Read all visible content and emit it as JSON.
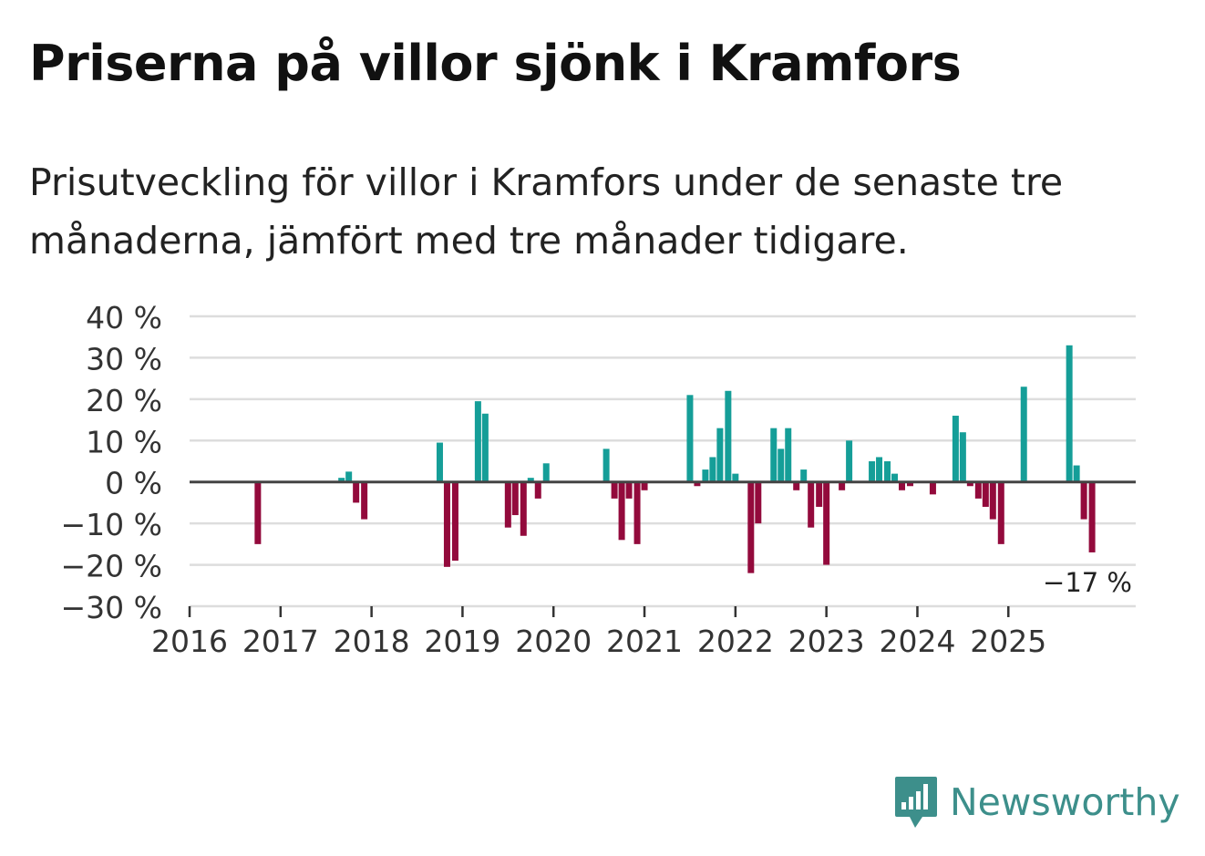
{
  "title": "Priserna på villor sjönk i Kramfors",
  "subtitle": "Prisutveckling för villor i Kramfors under de senaste tre månaderna, jämfört med tre månader tidigare.",
  "brand": "Newsworthy",
  "colors": {
    "positive": "#159e98",
    "negative": "#930a3c",
    "grid": "#dddddd",
    "zero_line": "#444444",
    "brand": "#3d8f8b"
  },
  "chart_data": {
    "type": "bar",
    "title": "Priserna på villor sjönk i Kramfors",
    "xlabel": "",
    "ylabel": "",
    "ylim": [
      -30,
      40
    ],
    "xlim": [
      2016,
      2026.4
    ],
    "y_ticks": [
      40,
      30,
      20,
      10,
      0,
      -10,
      -20,
      -30
    ],
    "y_tick_labels": [
      "40 %",
      "30 %",
      "20 %",
      "10 %",
      "0 %",
      "−10 %",
      "−20 %",
      "−30 %"
    ],
    "x_ticks": [
      2016,
      2017,
      2018,
      2019,
      2020,
      2021,
      2022,
      2023,
      2024,
      2025
    ],
    "x_tick_labels": [
      "2016",
      "2017",
      "2018",
      "2019",
      "2020",
      "2021",
      "2022",
      "2023",
      "2024",
      "2025"
    ],
    "annotation": "−17 %",
    "points": [
      {
        "x": 2016.75,
        "value": -15
      },
      {
        "x": 2017.67,
        "value": 1
      },
      {
        "x": 2017.75,
        "value": 2.5
      },
      {
        "x": 2017.83,
        "value": -5
      },
      {
        "x": 2017.92,
        "value": -9
      },
      {
        "x": 2018.75,
        "value": 9.5
      },
      {
        "x": 2018.83,
        "value": -20.5
      },
      {
        "x": 2018.92,
        "value": -19
      },
      {
        "x": 2019.17,
        "value": 19.5
      },
      {
        "x": 2019.25,
        "value": 16.5
      },
      {
        "x": 2019.5,
        "value": -11
      },
      {
        "x": 2019.58,
        "value": -8
      },
      {
        "x": 2019.67,
        "value": -13
      },
      {
        "x": 2019.75,
        "value": 1
      },
      {
        "x": 2019.83,
        "value": -4
      },
      {
        "x": 2019.92,
        "value": 4.5
      },
      {
        "x": 2020.58,
        "value": 8
      },
      {
        "x": 2020.67,
        "value": -4
      },
      {
        "x": 2020.75,
        "value": -14
      },
      {
        "x": 2020.83,
        "value": -4
      },
      {
        "x": 2020.92,
        "value": -15
      },
      {
        "x": 2021.0,
        "value": -2
      },
      {
        "x": 2021.5,
        "value": 21
      },
      {
        "x": 2021.58,
        "value": -1
      },
      {
        "x": 2021.67,
        "value": 3
      },
      {
        "x": 2021.75,
        "value": 6
      },
      {
        "x": 2021.83,
        "value": 13
      },
      {
        "x": 2021.92,
        "value": 22
      },
      {
        "x": 2022.0,
        "value": 2
      },
      {
        "x": 2022.17,
        "value": -22
      },
      {
        "x": 2022.25,
        "value": -10
      },
      {
        "x": 2022.42,
        "value": 13
      },
      {
        "x": 2022.5,
        "value": 8
      },
      {
        "x": 2022.58,
        "value": 13
      },
      {
        "x": 2022.67,
        "value": -2
      },
      {
        "x": 2022.75,
        "value": 3
      },
      {
        "x": 2022.83,
        "value": -11
      },
      {
        "x": 2022.92,
        "value": -6
      },
      {
        "x": 2023.0,
        "value": -20
      },
      {
        "x": 2023.17,
        "value": -2
      },
      {
        "x": 2023.25,
        "value": 10
      },
      {
        "x": 2023.5,
        "value": 5
      },
      {
        "x": 2023.58,
        "value": 6
      },
      {
        "x": 2023.67,
        "value": 5
      },
      {
        "x": 2023.75,
        "value": 2
      },
      {
        "x": 2023.83,
        "value": -2
      },
      {
        "x": 2023.92,
        "value": -1
      },
      {
        "x": 2024.17,
        "value": -3
      },
      {
        "x": 2024.42,
        "value": 16
      },
      {
        "x": 2024.5,
        "value": 12
      },
      {
        "x": 2024.58,
        "value": -1
      },
      {
        "x": 2024.67,
        "value": -4
      },
      {
        "x": 2024.75,
        "value": -6
      },
      {
        "x": 2024.83,
        "value": -9
      },
      {
        "x": 2024.92,
        "value": -15
      },
      {
        "x": 2025.17,
        "value": 23
      },
      {
        "x": 2025.67,
        "value": 33
      },
      {
        "x": 2025.75,
        "value": 4
      },
      {
        "x": 2025.83,
        "value": -9
      },
      {
        "x": 2025.92,
        "value": -17
      }
    ]
  }
}
